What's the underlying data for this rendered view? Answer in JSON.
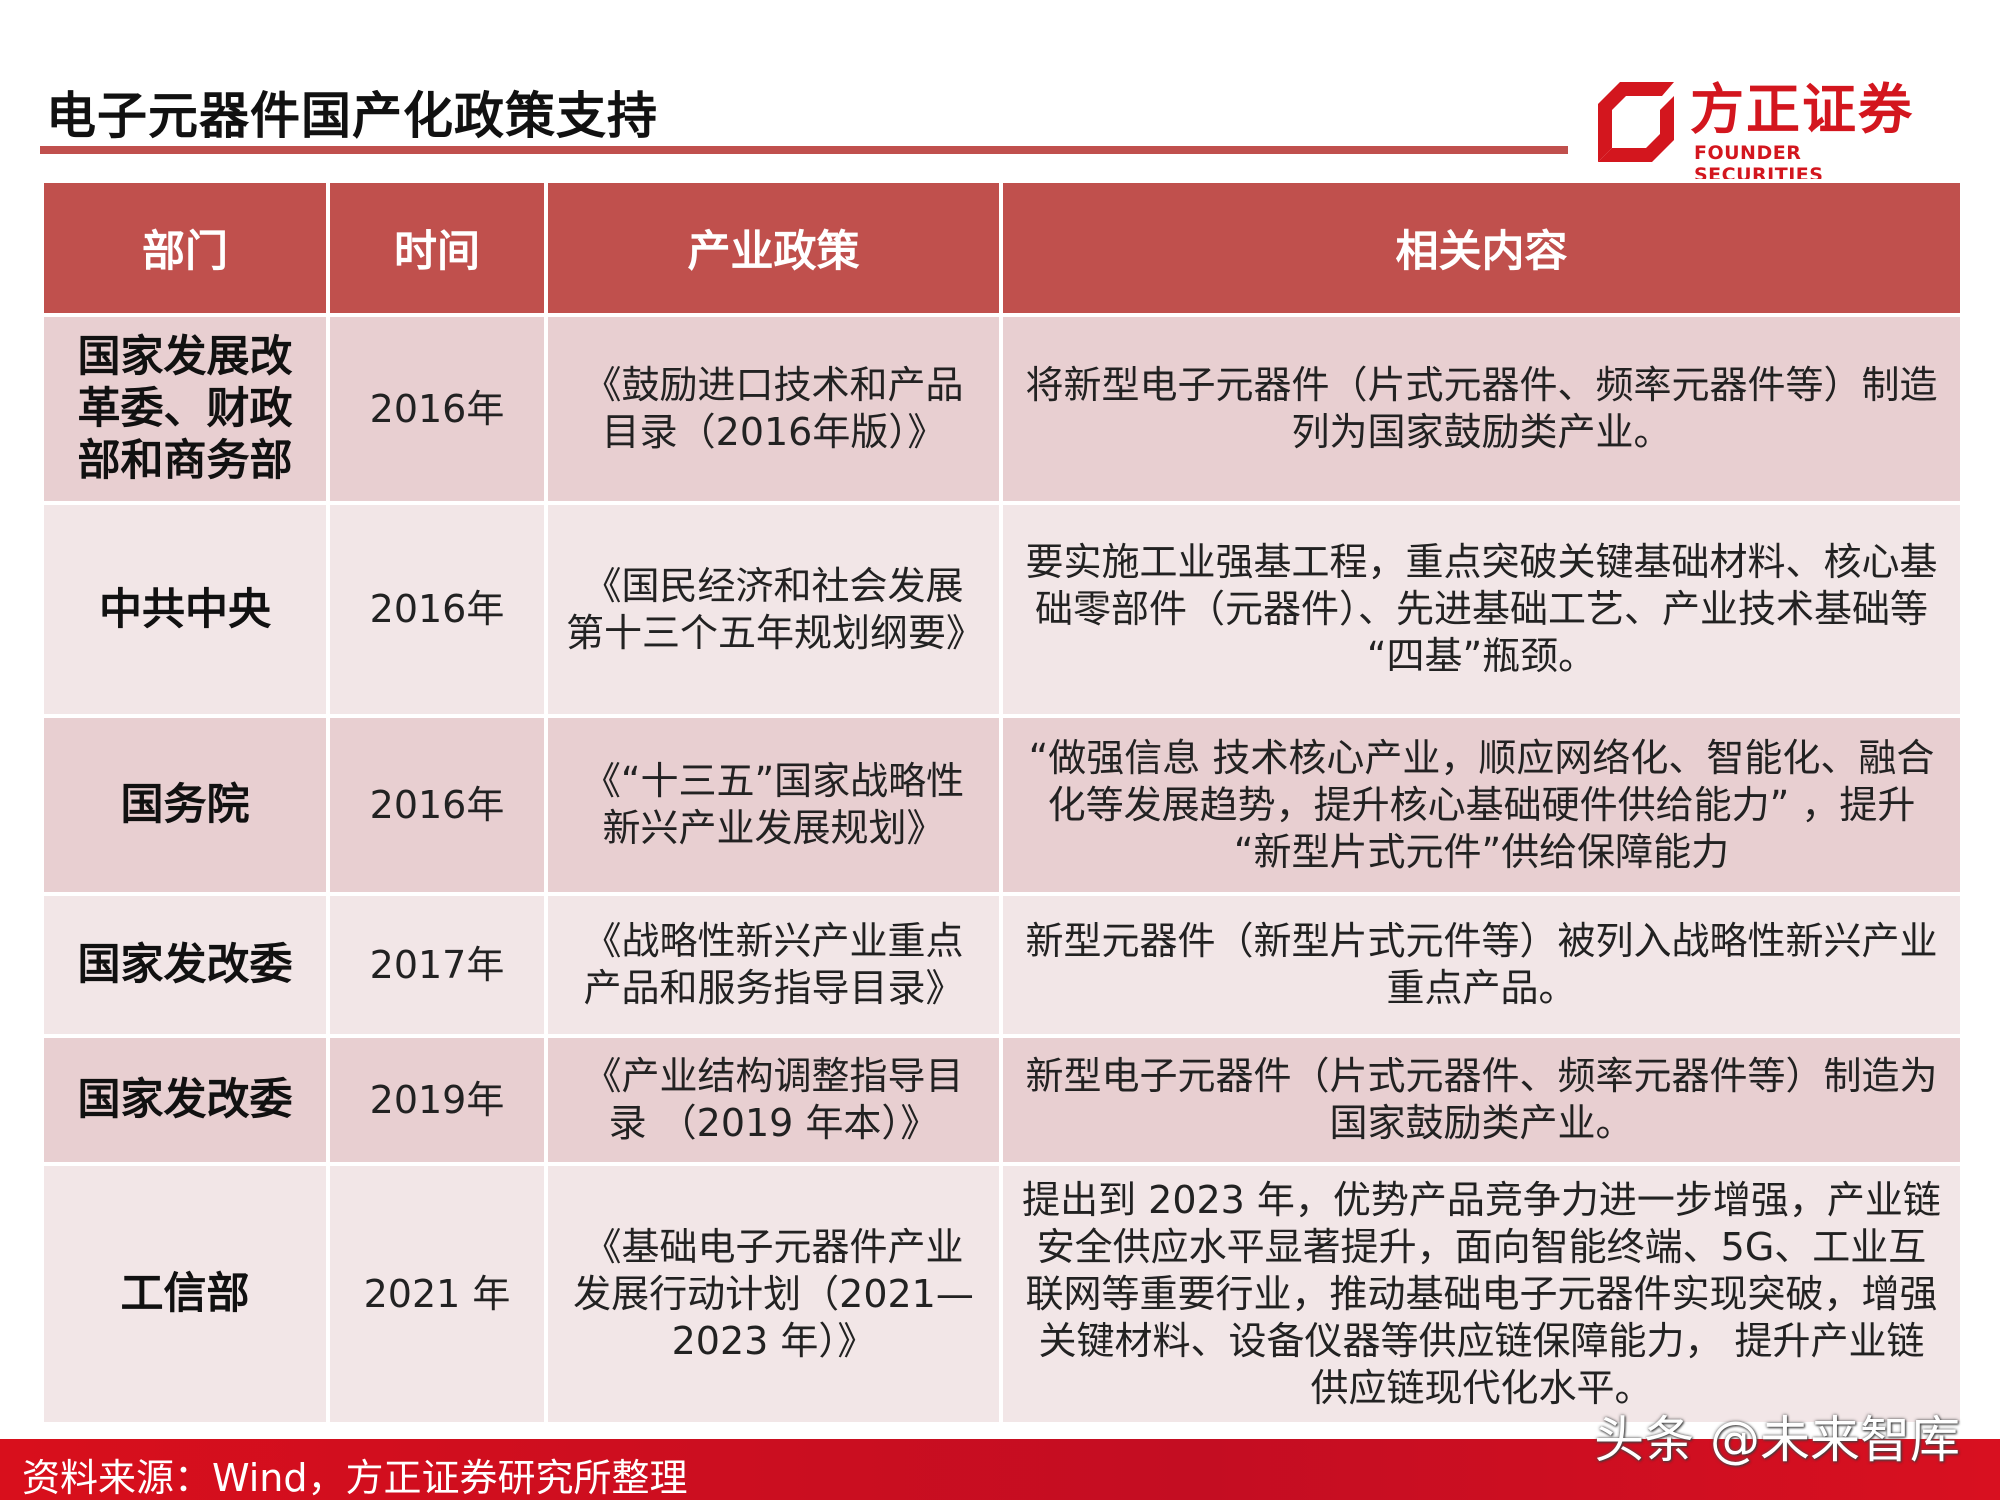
{
  "title": "电子元器件国产化政策支持",
  "logo": {
    "cn": "方正证券",
    "en": "FOUNDER SECURITIES"
  },
  "colors": {
    "header": "#c0504d",
    "row_dark": "#e8cfd1",
    "row_light": "#f2e6e7",
    "brand_red": "#d3161e"
  },
  "table": {
    "headers": [
      "部门",
      "时间",
      "产业政策",
      "相关内容"
    ],
    "rows": [
      {
        "dept": "国家发展改革委、财政部和商务部",
        "time": "2016年",
        "policy": "《鼓励进口技术和产品目录（2016年版）》",
        "content": "将新型电子元器件（片式元器件、频率元器件等）制造列为国家鼓励类产业。"
      },
      {
        "dept": "中共中央",
        "time": "2016年",
        "policy": "《国民经济和社会发展第十三个五年规划纲要》",
        "content": "要实施工业强基工程，重点突破关键基础材料、核心基础零部件（元器件）、先进基础工艺、产业技术基础等 “四基”瓶颈。"
      },
      {
        "dept": "国务院",
        "time": "2016年",
        "policy": "《“十三五”国家战略性新兴产业发展规划》",
        "content": "“做强信息 技术核心产业，顺应网络化、智能化、融合化等发展趋势，提升核心基础硬件供给能力” ，提升 “新型片式元件”供给保障能力"
      },
      {
        "dept": "国家发改委",
        "time": "2017年",
        "policy": "《战略性新兴产业重点产品和服务指导目录》",
        "content": "新型元器件（新型片式元件等）被列入战略性新兴产业重点产品。"
      },
      {
        "dept": "国家发改委",
        "time": "2019年",
        "policy": "《产业结构调整指导目录 （2019 年本）》",
        "content": "新型电子元器件（片式元器件、频率元器件等）制造为国家鼓励类产业。"
      },
      {
        "dept": "工信部",
        "time": "2021 年",
        "policy": "《基础电子元器件产业发展行动计划（2021—2023 年）》",
        "content": "提出到 2023 年，优势产品竞争力进一步增强，产业链安全供应水平显著提升，面向智能终端、5G、工业互联网等重要行业，推动基础电子元器件实现突破，增强关键材料、设备仪器等供应链保障能力， 提升产业链供应链现代化水平。"
      }
    ]
  },
  "footer": {
    "source": "资料来源：Wind，方正证券研究所整理"
  },
  "watermark": "头条 @未来智库"
}
